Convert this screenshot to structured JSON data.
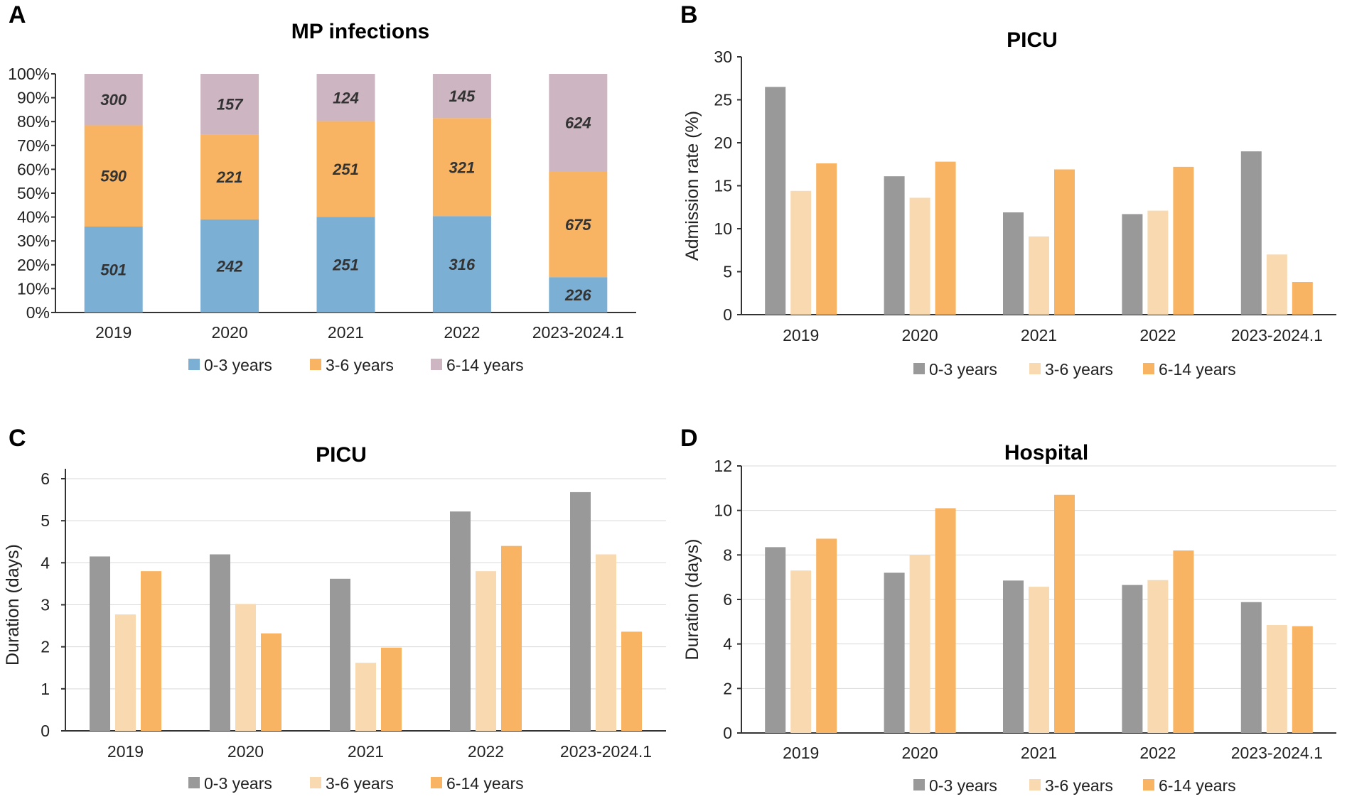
{
  "chart_data": [
    {
      "id": "A",
      "panel": "A",
      "type": "bar",
      "stacked": "percent",
      "title": "MP infections",
      "xlabel": "",
      "ylabel": "",
      "ylim": [
        0,
        100
      ],
      "yticks": [
        0,
        10,
        20,
        30,
        40,
        50,
        60,
        70,
        80,
        90,
        100
      ],
      "ytick_suffix": "%",
      "grid": false,
      "legend": "bottom",
      "categories": [
        "2019",
        "2020",
        "2021",
        "2022",
        "2023-2024.1"
      ],
      "series": [
        {
          "name": "0-3 years",
          "color": "#7BAFD4",
          "values": [
            501,
            242,
            251,
            316,
            226
          ]
        },
        {
          "name": "3-6 years",
          "color": "#F8B462",
          "values": [
            590,
            221,
            251,
            321,
            675
          ]
        },
        {
          "name": "6-14 years",
          "color": "#CDB5C2",
          "values": [
            300,
            157,
            124,
            145,
            624
          ]
        }
      ]
    },
    {
      "id": "B",
      "panel": "B",
      "type": "bar",
      "title": "PICU",
      "xlabel": "",
      "ylabel": "Admission rate (%)",
      "ylim": [
        0,
        30
      ],
      "yticks": [
        0,
        5,
        10,
        15,
        20,
        25,
        30
      ],
      "grid": false,
      "legend": "bottom",
      "categories": [
        "2019",
        "2020",
        "2021",
        "2022",
        "2023-2024.1"
      ],
      "series": [
        {
          "name": "0-3 years",
          "color": "#999999",
          "values": [
            26.5,
            16.1,
            11.9,
            11.7,
            19.0
          ]
        },
        {
          "name": "3-6 years",
          "color": "#F8D9B0",
          "values": [
            14.4,
            13.6,
            9.1,
            12.1,
            7.0
          ]
        },
        {
          "name": "6-14 years",
          "color": "#F8B462",
          "values": [
            17.6,
            17.8,
            16.9,
            17.2,
            3.8
          ]
        }
      ]
    },
    {
      "id": "C",
      "panel": "C",
      "type": "bar",
      "title": "PICU",
      "xlabel": "",
      "ylabel": "Duration (days)",
      "ylim": [
        0,
        6
      ],
      "yticks": [
        0,
        1,
        2,
        3,
        4,
        5,
        6
      ],
      "grid": true,
      "legend": "bottom",
      "categories": [
        "2019",
        "2020",
        "2021",
        "2022",
        "2023-2024.1"
      ],
      "series": [
        {
          "name": "0-3 years",
          "color": "#999999",
          "values": [
            4.15,
            4.2,
            3.62,
            5.22,
            5.68
          ]
        },
        {
          "name": "3-6 years",
          "color": "#F8D9B0",
          "values": [
            2.77,
            3.02,
            1.62,
            3.8,
            4.2
          ]
        },
        {
          "name": "6-14 years",
          "color": "#F8B462",
          "values": [
            3.8,
            2.32,
            1.98,
            4.4,
            2.36
          ]
        }
      ]
    },
    {
      "id": "D",
      "panel": "D",
      "type": "bar",
      "title": "Hospital",
      "xlabel": "",
      "ylabel": "Duration (days)",
      "ylim": [
        0,
        12
      ],
      "yticks": [
        0,
        2,
        4,
        6,
        8,
        10,
        12
      ],
      "grid": true,
      "legend": "bottom",
      "categories": [
        "2019",
        "2020",
        "2021",
        "2022",
        "2023-2024.1"
      ],
      "series": [
        {
          "name": "0-3 years",
          "color": "#999999",
          "values": [
            8.35,
            7.2,
            6.85,
            6.65,
            5.88
          ]
        },
        {
          "name": "3-6 years",
          "color": "#F8D9B0",
          "values": [
            7.3,
            8.0,
            6.57,
            6.87,
            4.85
          ]
        },
        {
          "name": "6-14 years",
          "color": "#F8B462",
          "values": [
            8.73,
            10.1,
            10.7,
            8.2,
            4.8
          ]
        }
      ]
    }
  ]
}
